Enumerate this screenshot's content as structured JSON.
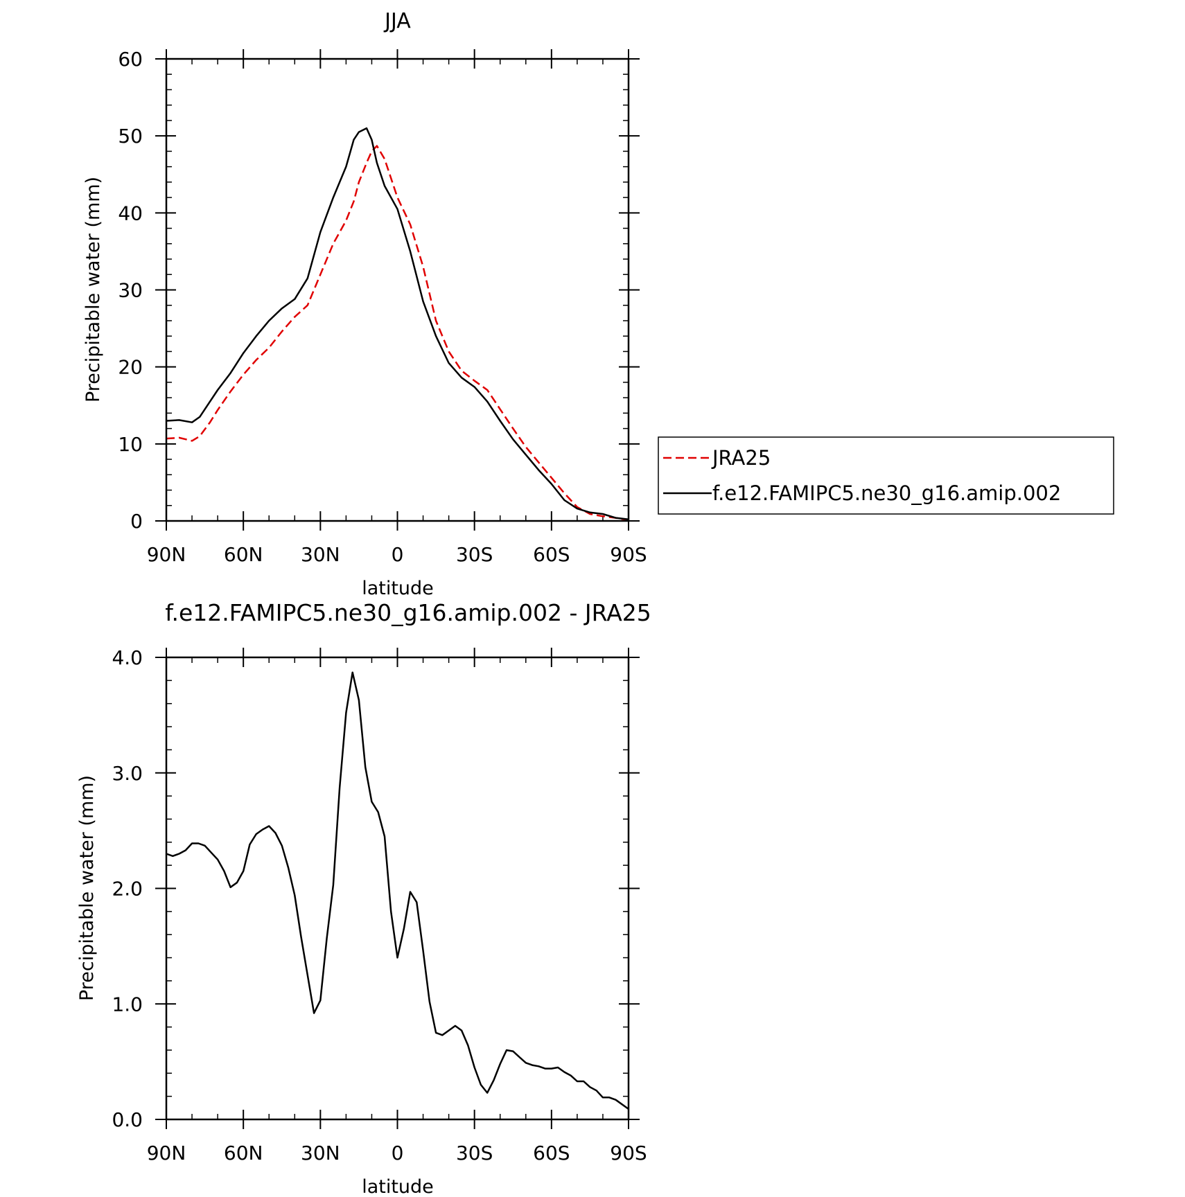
{
  "chart_data": [
    {
      "type": "line",
      "title": "JJA",
      "xlabel": "latitude",
      "ylabel": "Precipitable water (mm)",
      "xlim": [
        90,
        -90
      ],
      "ylim": [
        0,
        60
      ],
      "x_ticks": [
        90,
        60,
        30,
        0,
        -30,
        -60,
        -90
      ],
      "x_tick_labels": [
        "90N",
        "60N",
        "30N",
        "0",
        "30S",
        "60S",
        "90S"
      ],
      "y_ticks": [
        0,
        10,
        20,
        30,
        40,
        50,
        60
      ],
      "y_tick_labels": [
        "0",
        "10",
        "20",
        "30",
        "40",
        "50",
        "60"
      ],
      "legend": {
        "position": "right"
      },
      "series": [
        {
          "name": "JRA25",
          "color": "#e00000",
          "dash": "dashed",
          "x": [
            90,
            85,
            80,
            77,
            73,
            70,
            65,
            60,
            55,
            50,
            45,
            40,
            35,
            30,
            25,
            20,
            17,
            15,
            12,
            10,
            8,
            5,
            0,
            -5,
            -10,
            -15,
            -20,
            -25,
            -30,
            -35,
            -40,
            -45,
            -50,
            -55,
            -60,
            -65,
            -70,
            -75,
            -80,
            -85,
            -90
          ],
          "y": [
            10.7,
            10.8,
            10.4,
            11.0,
            12.8,
            14.4,
            16.8,
            19.0,
            20.9,
            22.5,
            24.6,
            26.5,
            28.0,
            32.0,
            36.0,
            39.0,
            41.5,
            44.0,
            46.5,
            48.0,
            48.7,
            47.0,
            42.0,
            38.5,
            33.0,
            26.0,
            22.0,
            19.5,
            18.2,
            17.0,
            14.5,
            12.0,
            9.6,
            7.6,
            5.6,
            3.6,
            1.8,
            0.9,
            0.6,
            0.4,
            0.1
          ]
        },
        {
          "name": "f.e12.FAMIPC5.ne30_g16.amip.002",
          "color": "#000000",
          "dash": "solid",
          "x": [
            90,
            85,
            80,
            77,
            73,
            70,
            65,
            60,
            55,
            50,
            45,
            40,
            35,
            30,
            25,
            20,
            17,
            15,
            12,
            10,
            8,
            5,
            0,
            -5,
            -10,
            -15,
            -20,
            -25,
            -30,
            -35,
            -40,
            -45,
            -50,
            -55,
            -60,
            -65,
            -70,
            -75,
            -80,
            -85,
            -90
          ],
          "y": [
            13.0,
            13.1,
            12.8,
            13.5,
            15.5,
            17.0,
            19.2,
            21.8,
            24.0,
            26.0,
            27.6,
            28.8,
            31.5,
            37.5,
            42.0,
            46.0,
            49.5,
            50.5,
            51.0,
            49.5,
            46.5,
            43.5,
            40.5,
            35.0,
            28.5,
            24.0,
            20.5,
            18.6,
            17.4,
            15.5,
            13.0,
            10.6,
            8.6,
            6.6,
            4.8,
            2.7,
            1.6,
            1.1,
            0.9,
            0.4,
            0.2
          ]
        }
      ]
    },
    {
      "type": "line",
      "title": "f.e12.FAMIPC5.ne30_g16.amip.002 - JRA25",
      "xlabel": "latitude",
      "ylabel": "Precipitable water (mm)",
      "xlim": [
        90,
        -90
      ],
      "ylim": [
        0,
        4
      ],
      "x_ticks": [
        90,
        60,
        30,
        0,
        -30,
        -60,
        -90
      ],
      "x_tick_labels": [
        "90N",
        "60N",
        "30N",
        "0",
        "30S",
        "60S",
        "90S"
      ],
      "y_ticks": [
        0,
        1,
        2,
        3,
        4
      ],
      "y_tick_labels": [
        "0.0",
        "1.0",
        "2.0",
        "3.0",
        "4.0"
      ],
      "series": [
        {
          "name": "f.e12.FAMIPC5.ne30_g16.amip.002 - JRA25",
          "color": "#000000",
          "x": [
            90,
            87.5,
            85,
            82.5,
            80,
            77.5,
            75,
            72.5,
            70,
            67.5,
            65,
            62.5,
            60,
            57.5,
            55,
            52.5,
            50,
            47.5,
            45,
            42.5,
            40,
            37.5,
            35,
            32.5,
            30,
            27.5,
            25,
            22.5,
            20,
            17.5,
            15,
            12.5,
            10,
            7.5,
            5,
            2.5,
            0,
            -2.5,
            -5,
            -7.5,
            -10,
            -12.5,
            -15,
            -17.5,
            -20,
            -22.5,
            -25,
            -27.5,
            -30,
            -32.5,
            -35,
            -37.5,
            -40,
            -42.5,
            -45,
            -47.5,
            -50,
            -52.5,
            -55,
            -57.5,
            -60,
            -62.5,
            -65,
            -67.5,
            -70,
            -72.5,
            -75,
            -77.5,
            -80,
            -82.5,
            -85,
            -87.5,
            -90
          ],
          "y": [
            2.3,
            2.28,
            2.3,
            2.33,
            2.39,
            2.39,
            2.37,
            2.31,
            2.25,
            2.15,
            2.01,
            2.05,
            2.15,
            2.38,
            2.47,
            2.51,
            2.54,
            2.48,
            2.37,
            2.18,
            1.94,
            1.58,
            1.25,
            0.92,
            1.03,
            1.57,
            2.03,
            2.87,
            3.52,
            3.87,
            3.63,
            3.05,
            2.75,
            2.66,
            2.45,
            1.8,
            1.4,
            1.65,
            1.97,
            1.88,
            1.46,
            1.02,
            0.75,
            0.73,
            0.77,
            0.81,
            0.77,
            0.64,
            0.45,
            0.3,
            0.23,
            0.34,
            0.48,
            0.6,
            0.59,
            0.54,
            0.49,
            0.47,
            0.46,
            0.44,
            0.44,
            0.45,
            0.41,
            0.38,
            0.33,
            0.33,
            0.28,
            0.25,
            0.19,
            0.19,
            0.17,
            0.13,
            0.09
          ]
        }
      ]
    }
  ]
}
